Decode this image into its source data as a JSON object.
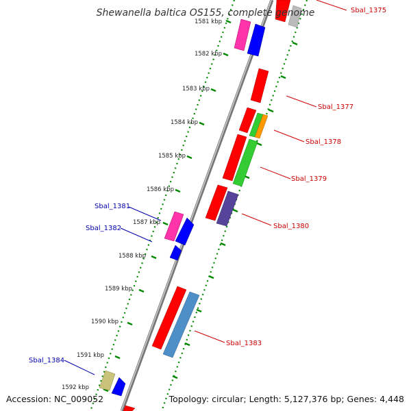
{
  "title": "Shewanella baltica OS155, complete genome",
  "accession": "Accession: NC_009052",
  "topology": "Topology: circular; Length: 5,127,376 bp; Genes: 4,448",
  "ticks": [
    "1581 kbp",
    "1582 kbp",
    "1583 kbp",
    "1584 kbp",
    "1585 kbp",
    "1586 kbp",
    "1587 kbp",
    "1588 kbp",
    "1589 kbp",
    "1590 kbp",
    "1591 kbp",
    "1592 kbp"
  ],
  "gene_labels": [
    {
      "text": "Sbal_1375",
      "color": "#cc0000"
    },
    {
      "text": "Sbal_1377",
      "color": "#cc0000"
    },
    {
      "text": "Sbal_1378",
      "color": "#cc0000"
    },
    {
      "text": "Sbal_1379",
      "color": "#cc0000"
    },
    {
      "text": "Sbal_1380",
      "color": "#cc0000"
    },
    {
      "text": "Sbal_1381",
      "color": "#0000aa"
    },
    {
      "text": "Sbal_1382",
      "color": "#0000aa"
    },
    {
      "text": "Sbal_1383",
      "color": "#cc0000"
    },
    {
      "text": "Sbal_1384",
      "color": "#0000aa"
    }
  ],
  "colors": {
    "red": "#ff0000",
    "blue": "#0000ff",
    "magenta": "#ff33aa",
    "green": "#33cc33",
    "orange": "#ff9900",
    "purple": "#554499",
    "steel": "#4f8fc8",
    "khaki": "#c8c27a",
    "grey": "#bbbbbb",
    "dots": "#008800",
    "backbone": "#888888"
  }
}
